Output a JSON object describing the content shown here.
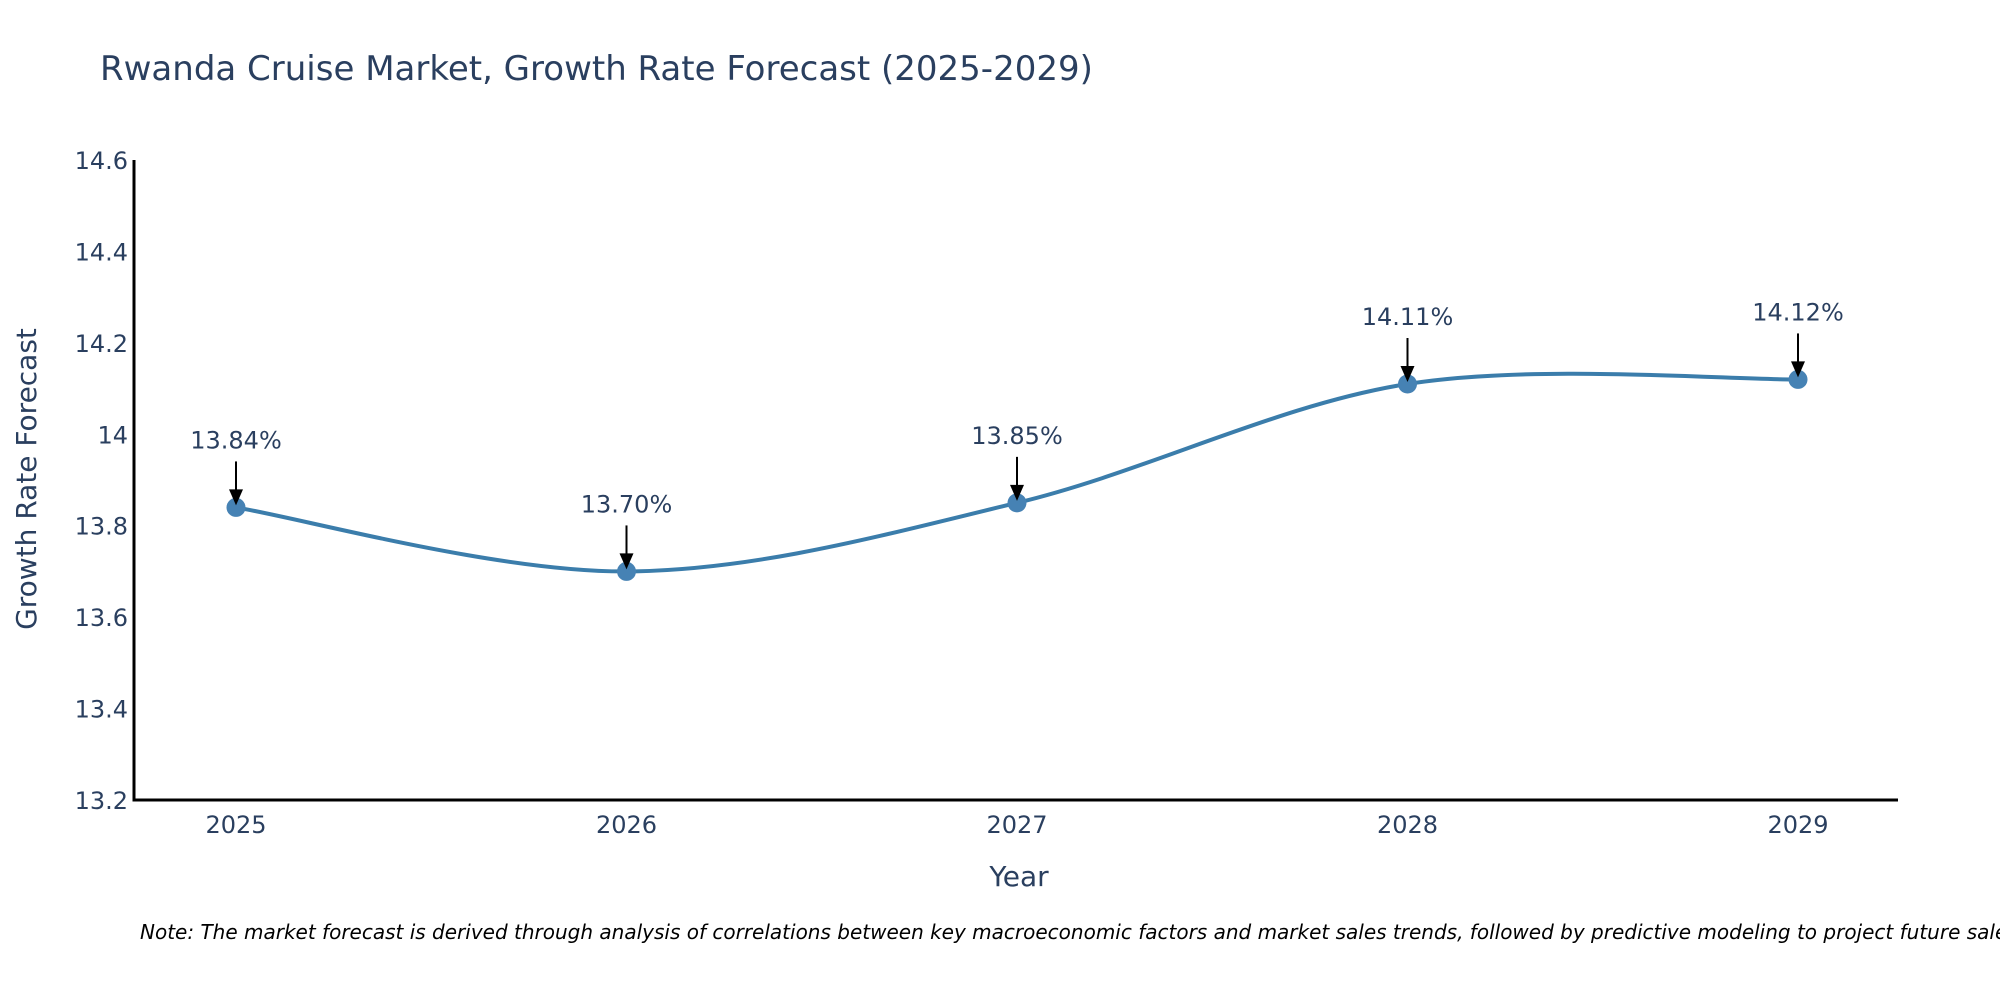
{
  "chart_data": {
    "type": "line",
    "title": "Rwanda Cruise Market, Growth Rate Forecast (2025-2029)",
    "xlabel": "Year",
    "ylabel": "Growth Rate Forecast",
    "categories": [
      "2025",
      "2026",
      "2027",
      "2028",
      "2029"
    ],
    "values": [
      13.84,
      13.7,
      13.85,
      14.11,
      14.12
    ],
    "labels": [
      "13.84%",
      "13.70%",
      "13.85%",
      "14.11%",
      "14.12%"
    ],
    "ylim": [
      13.2,
      14.6
    ],
    "yticks": [
      13.2,
      13.4,
      13.6,
      13.8,
      14,
      14.2,
      14.4,
      14.6
    ],
    "ytick_labels": [
      "13.2",
      "13.4",
      "13.6",
      "13.8",
      "14",
      "14.2",
      "14.4",
      "14.6"
    ],
    "line_color": "#3b7dab",
    "marker_color": "#4682b4",
    "grid": false
  },
  "note": "Note: The market forecast is derived through analysis of correlations between key macroeconomic factors and market sales trends, followed by predictive modeling to project future sales."
}
